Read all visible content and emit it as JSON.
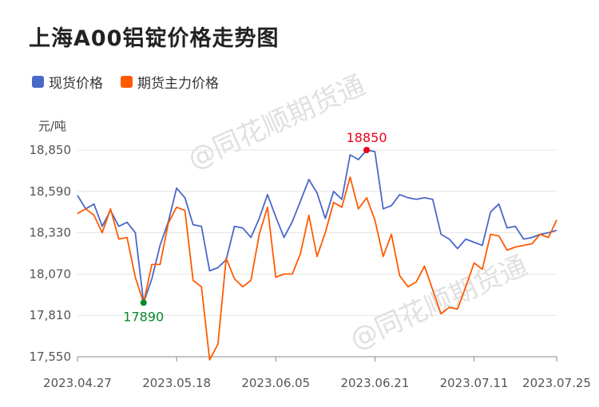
{
  "title": "上海A00铝锭价格走势图",
  "legend": [
    {
      "name": "现货价格",
      "color": "#4a68c8"
    },
    {
      "name": "期货主力价格",
      "color": "#ff5a00"
    }
  ],
  "unit": "元/吨",
  "watermark": "@同花顺期货通",
  "chart_data": {
    "type": "line",
    "ylim": [
      17550,
      18850
    ],
    "y_ticks": [
      17550,
      17810,
      18070,
      18330,
      18590,
      18850
    ],
    "y_tick_labels": [
      "17,550",
      "17,810",
      "18,070",
      "18,330",
      "18,590",
      "18,850"
    ],
    "x_tick_labels": [
      {
        "index": 0,
        "label": "2023.04.27"
      },
      {
        "index": 12,
        "label": "2023.05.18"
      },
      {
        "index": 24,
        "label": "2023.06.05"
      },
      {
        "index": 36,
        "label": "2023.06.21"
      },
      {
        "index": 48,
        "label": "2023.07.11"
      },
      {
        "index": 58,
        "label": "2023.07.25"
      }
    ],
    "grid": true,
    "series": [
      {
        "name": "现货价格",
        "color": "#4a68c8",
        "values": [
          18565,
          18480,
          18510,
          18370,
          18470,
          18370,
          18395,
          18330,
          17890,
          18040,
          18250,
          18400,
          18610,
          18550,
          18380,
          18370,
          18090,
          18110,
          18160,
          18370,
          18360,
          18300,
          18420,
          18570,
          18430,
          18300,
          18400,
          18530,
          18665,
          18580,
          18420,
          18590,
          18540,
          18820,
          18790,
          18850,
          18840,
          18480,
          18500,
          18570,
          18550,
          18540,
          18550,
          18540,
          18320,
          18290,
          18230,
          18290,
          18270,
          18250,
          18460,
          18510,
          18360,
          18370,
          18290,
          18300,
          18320,
          18330,
          18345
        ]
      },
      {
        "name": "期货主力价格",
        "color": "#ff5a00",
        "values": [
          18450,
          18480,
          18440,
          18330,
          18480,
          18290,
          18300,
          18050,
          17890,
          18130,
          18130,
          18390,
          18490,
          18470,
          18030,
          17990,
          17530,
          17630,
          18170,
          18040,
          17990,
          18030,
          18320,
          18490,
          18050,
          18070,
          18070,
          18200,
          18440,
          18180,
          18330,
          18520,
          18490,
          18680,
          18480,
          18550,
          18410,
          18180,
          18320,
          18060,
          17990,
          18020,
          18120,
          17970,
          17820,
          17860,
          17850,
          17990,
          18140,
          18100,
          18320,
          18310,
          18220,
          18240,
          18250,
          18260,
          18320,
          18300,
          18410
        ]
      }
    ],
    "annotations": [
      {
        "index": 35,
        "series": "现货价格",
        "value": 18850,
        "label": "18850",
        "color": "#e8001c"
      },
      {
        "index": 8,
        "series": "现货价格",
        "value": 17890,
        "label": "17890",
        "color": "#0a8a2a"
      }
    ]
  }
}
